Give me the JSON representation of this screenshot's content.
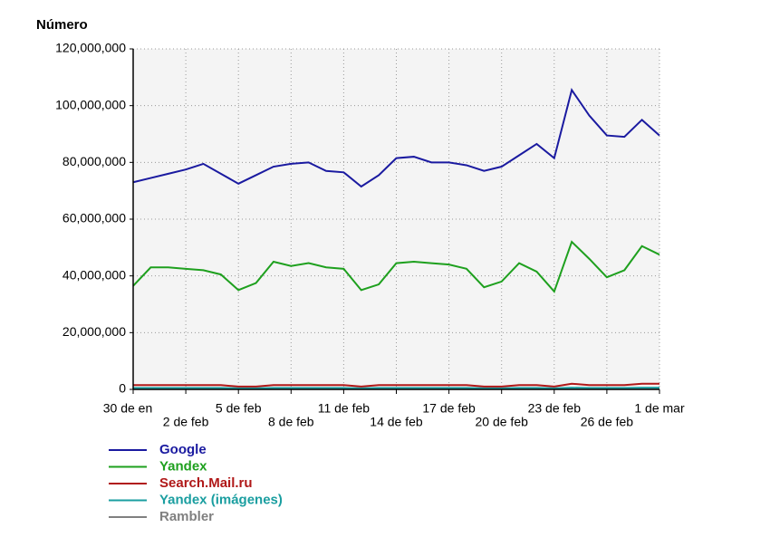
{
  "chart_data": {
    "type": "line",
    "y_axis_label": "Número",
    "categories": [
      "30 de en",
      null,
      null,
      "2 de feb",
      null,
      null,
      "5 de feb",
      null,
      null,
      "8 de feb",
      null,
      null,
      "11 de feb",
      null,
      null,
      "14 de feb",
      null,
      null,
      "17 de feb",
      null,
      null,
      "20 de feb",
      null,
      null,
      "23 de feb",
      null,
      null,
      "26 de feb",
      null,
      null,
      "1 de mar"
    ],
    "ylim": [
      0,
      120000000
    ],
    "yticks": [
      0,
      {
        "value": 20000000,
        "label": "20,000,000"
      },
      {
        "value": 40000000,
        "label": "40,000,000"
      },
      {
        "value": 60000000,
        "label": "60,000,000"
      },
      {
        "value": 80000000,
        "label": "80,000,000"
      },
      {
        "value": 100000000,
        "label": "100,000,000"
      },
      {
        "value": 120000000,
        "label": "120,000,000"
      }
    ],
    "grid": true,
    "series": [
      {
        "name": "Google",
        "color": "#1a1aa0",
        "values": [
          73000000,
          74500000,
          76000000,
          77500000,
          79500000,
          76000000,
          72500000,
          75500000,
          78500000,
          79500000,
          80000000,
          77000000,
          76500000,
          71500000,
          75500000,
          81500000,
          82000000,
          80000000,
          80000000,
          79000000,
          77000000,
          78500000,
          82500000,
          86500000,
          81500000,
          105500000,
          96500000,
          89500000,
          89000000,
          95000000,
          89500000
        ]
      },
      {
        "name": "Yandex",
        "color": "#1ea01e",
        "values": [
          36500000,
          43000000,
          43000000,
          42500000,
          42000000,
          40500000,
          35000000,
          37500000,
          45000000,
          43500000,
          44500000,
          43000000,
          42500000,
          35000000,
          37000000,
          44500000,
          45000000,
          44500000,
          44000000,
          42500000,
          36000000,
          38000000,
          44500000,
          41500000,
          34500000,
          52000000,
          46000000,
          39500000,
          42000000,
          50500000,
          47500000
        ]
      },
      {
        "name": "Search.Mail.ru",
        "color": "#b01818",
        "values": [
          1500000,
          1500000,
          1500000,
          1500000,
          1500000,
          1500000,
          1000000,
          1000000,
          1500000,
          1500000,
          1500000,
          1500000,
          1500000,
          1000000,
          1500000,
          1500000,
          1500000,
          1500000,
          1500000,
          1500000,
          1000000,
          1000000,
          1500000,
          1500000,
          1000000,
          2000000,
          1500000,
          1500000,
          1500000,
          2000000,
          2000000
        ]
      },
      {
        "name": "Yandex (imágenes)",
        "color": "#1a9ea0",
        "values": [
          500000,
          500000,
          500000,
          500000,
          500000,
          500000,
          400000,
          400000,
          500000,
          500000,
          500000,
          500000,
          500000,
          400000,
          500000,
          500000,
          500000,
          500000,
          500000,
          500000,
          400000,
          400000,
          500000,
          500000,
          400000,
          600000,
          500000,
          500000,
          500000,
          600000,
          600000
        ]
      },
      {
        "name": "Rambler",
        "color": "#808080",
        "values": [
          200000,
          200000,
          200000,
          200000,
          200000,
          200000,
          200000,
          200000,
          200000,
          200000,
          200000,
          200000,
          200000,
          200000,
          200000,
          200000,
          200000,
          200000,
          200000,
          200000,
          200000,
          200000,
          200000,
          200000,
          200000,
          200000,
          200000,
          200000,
          200000,
          200000,
          200000
        ]
      }
    ]
  }
}
